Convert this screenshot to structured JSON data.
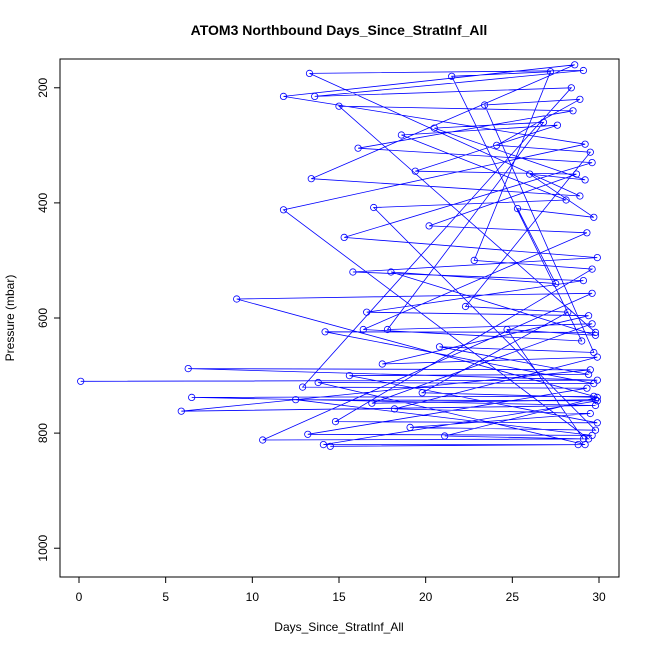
{
  "chart_data": {
    "type": "line",
    "title": "ATOM3 Northbound Days_Since_StratInf_All",
    "xlabel": "Days_Since_StratInf_All",
    "ylabel": "Pressure (mbar)",
    "xlim": [
      0,
      30
    ],
    "ylim": [
      1050,
      150
    ],
    "y_reversed": true,
    "x_ticks": [
      0,
      5,
      10,
      15,
      20,
      25,
      30
    ],
    "x_tick_labels": [
      "0",
      "5",
      "10",
      "15",
      "20",
      "25",
      "30"
    ],
    "y_ticks": [
      200,
      400,
      600,
      800,
      1000
    ],
    "y_tick_labels": [
      "200",
      "400",
      "600",
      "800",
      "1000"
    ],
    "series_color": "#0000ff",
    "marker": "open-circle",
    "grid": false,
    "legend": "none",
    "series": [
      {
        "values": [
          [
            0.1,
            710
          ],
          [
            29.9,
            708
          ],
          [
            6.3,
            688
          ],
          [
            29.5,
            690
          ],
          [
            5.9,
            762
          ],
          [
            29.8,
            752
          ],
          [
            6.5,
            738
          ],
          [
            29.7,
            736
          ],
          [
            9.1,
            567
          ],
          [
            29.6,
            557
          ],
          [
            10.6,
            812
          ],
          [
            29.4,
            810
          ],
          [
            11.8,
            412
          ],
          [
            29.2,
            298
          ],
          [
            11.8,
            215
          ],
          [
            28.6,
            160
          ],
          [
            13.4,
            358
          ],
          [
            28.9,
            388
          ],
          [
            13.3,
            175
          ],
          [
            29.1,
            170
          ],
          [
            13.6,
            215
          ],
          [
            28.4,
            200
          ],
          [
            12.9,
            720
          ],
          [
            29.3,
            722
          ],
          [
            13.2,
            802
          ],
          [
            29.6,
            804
          ],
          [
            12.5,
            742
          ],
          [
            29.9,
            744
          ],
          [
            14.1,
            820
          ],
          [
            28.8,
            820
          ],
          [
            14.5,
            823
          ],
          [
            29.2,
            820
          ],
          [
            13.8,
            712
          ],
          [
            29.7,
            714
          ],
          [
            14.2,
            624
          ],
          [
            29.8,
            625
          ],
          [
            15.0,
            232
          ],
          [
            28.5,
            240
          ],
          [
            16.1,
            305
          ],
          [
            29.6,
            330
          ],
          [
            15.3,
            460
          ],
          [
            29.9,
            495
          ],
          [
            15.8,
            520
          ],
          [
            29.1,
            535
          ],
          [
            16.6,
            590
          ],
          [
            29.4,
            596
          ],
          [
            17.5,
            680
          ],
          [
            29.9,
            668
          ],
          [
            18.2,
            758
          ],
          [
            29.5,
            766
          ],
          [
            19.1,
            790
          ],
          [
            29.8,
            795
          ],
          [
            17.0,
            408
          ],
          [
            28.1,
            395
          ],
          [
            18.6,
            282
          ],
          [
            27.6,
            265
          ],
          [
            19.4,
            345
          ],
          [
            28.7,
            350
          ],
          [
            20.2,
            440
          ],
          [
            29.3,
            452
          ],
          [
            16.4,
            620
          ],
          [
            29.0,
            640
          ],
          [
            21.5,
            180
          ],
          [
            27.2,
            172
          ],
          [
            22.8,
            500
          ],
          [
            29.6,
            515
          ],
          [
            14.8,
            780
          ],
          [
            29.9,
            782
          ],
          [
            15.6,
            700
          ],
          [
            29.4,
            698
          ],
          [
            20.8,
            650
          ],
          [
            29.7,
            660
          ],
          [
            23.4,
            230
          ],
          [
            28.9,
            220
          ],
          [
            24.1,
            300
          ],
          [
            29.5,
            312
          ],
          [
            22.3,
            580
          ],
          [
            28.2,
            590
          ],
          [
            19.8,
            730
          ],
          [
            29.9,
            738
          ],
          [
            21.1,
            805
          ],
          [
            29.1,
            810
          ],
          [
            24.7,
            620
          ],
          [
            29.8,
            630
          ],
          [
            18.0,
            520
          ],
          [
            27.5,
            540
          ],
          [
            25.3,
            410
          ],
          [
            29.7,
            425
          ],
          [
            26.0,
            350
          ],
          [
            29.2,
            360
          ],
          [
            20.5,
            270
          ],
          [
            26.8,
            260
          ],
          [
            17.8,
            620
          ],
          [
            29.6,
            610
          ],
          [
            16.9,
            748
          ],
          [
            29.8,
            742
          ]
        ]
      }
    ]
  }
}
